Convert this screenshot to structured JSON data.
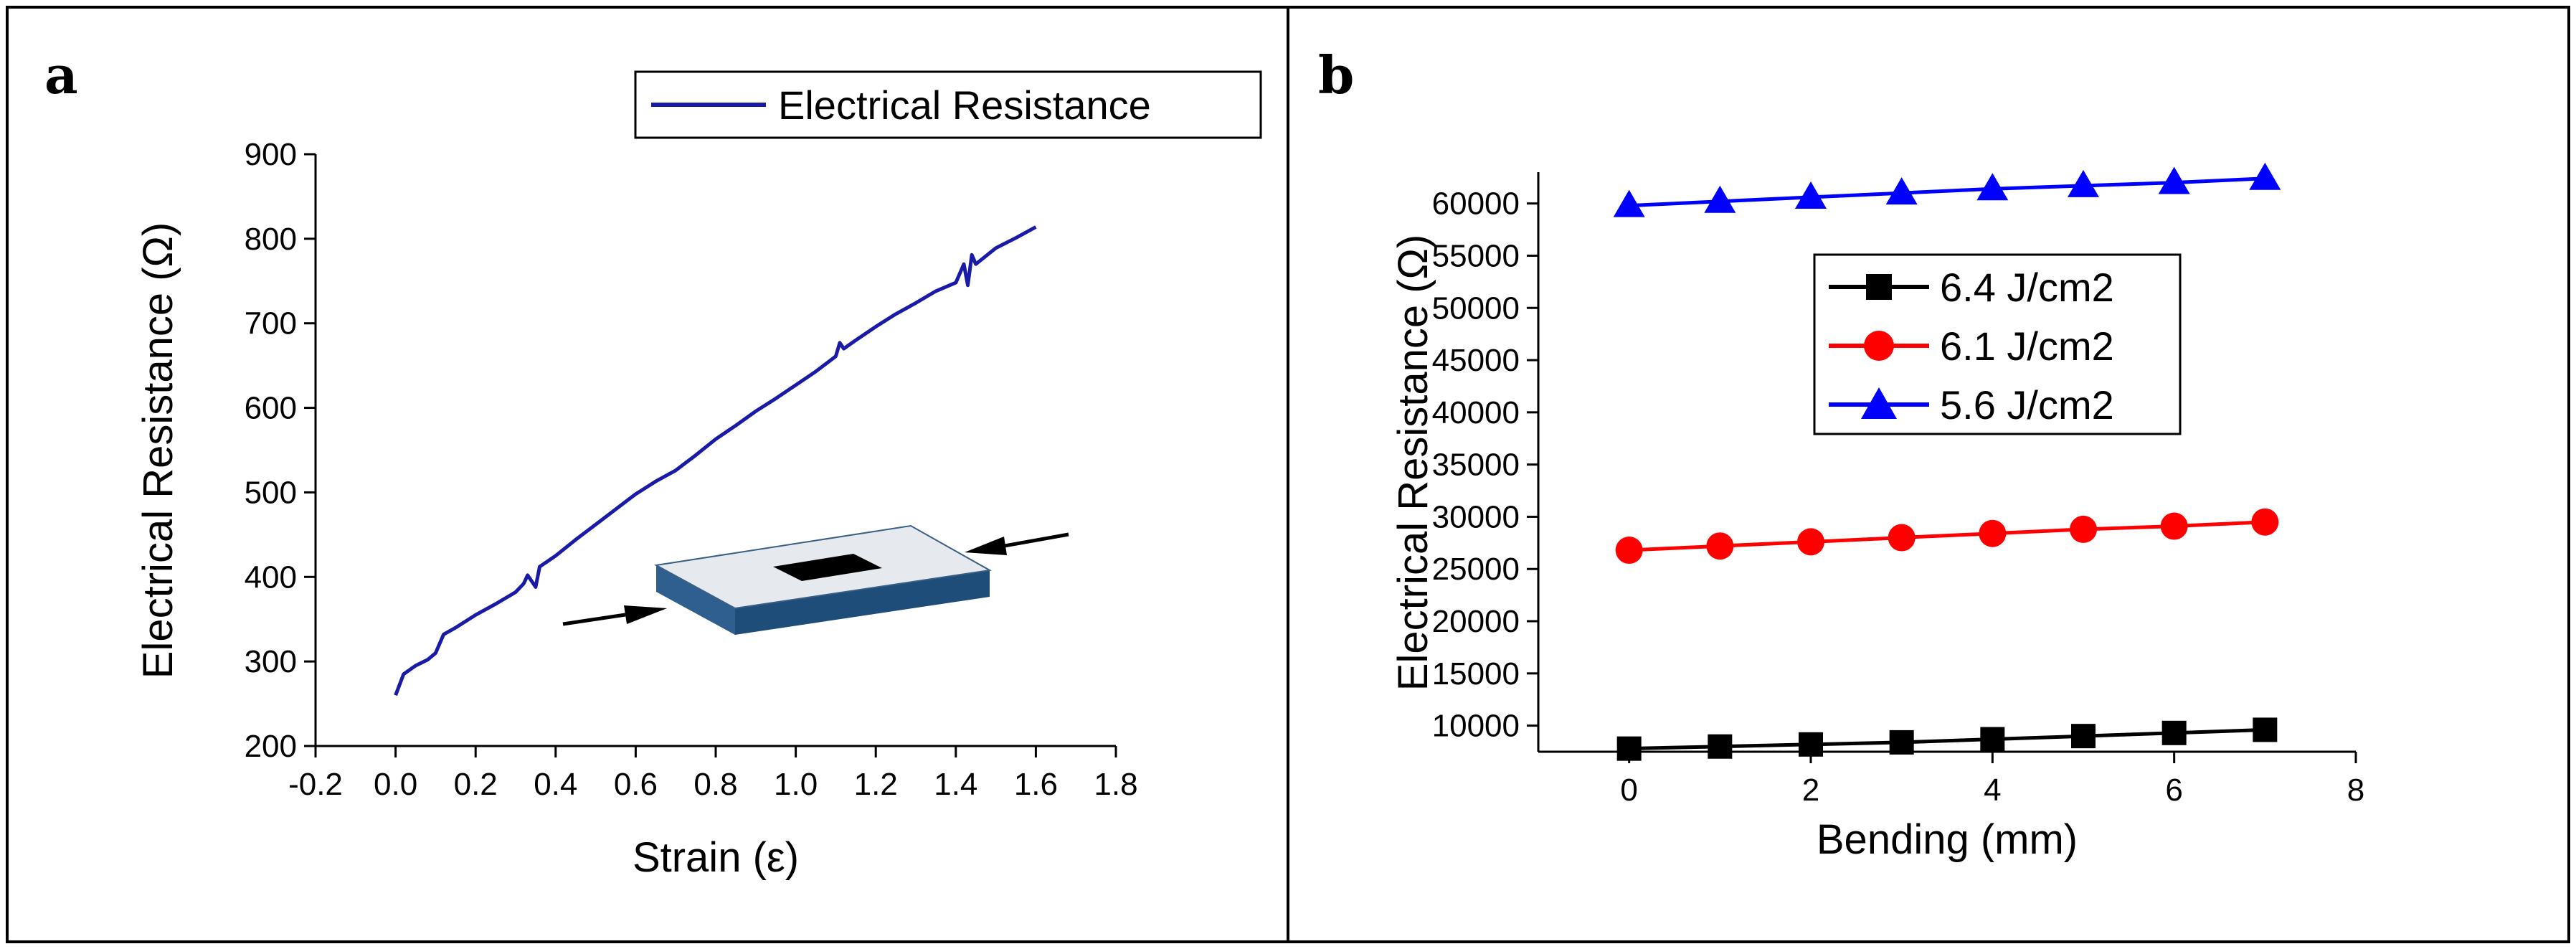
{
  "panels": {
    "a": {
      "letter": "a"
    },
    "b": {
      "letter": "b"
    }
  },
  "colors": {
    "black": "#000000",
    "red": "#ff0000",
    "blue": "#1a1aa8",
    "blue_bright": "#0000ff",
    "inset_top": "#e6e9ee",
    "inset_side": "#2e5f8f"
  },
  "chart_data": [
    {
      "type": "line",
      "title": "",
      "xlabel": "Strain (ε)",
      "ylabel": "Electrical Resistance (Ω)",
      "xlim": [
        -0.2,
        1.8
      ],
      "ylim": [
        200,
        900
      ],
      "xticks": [
        -0.2,
        0.0,
        0.2,
        0.4,
        0.6,
        0.8,
        1.0,
        1.2,
        1.4,
        1.6,
        1.8
      ],
      "xtick_labels": [
        "-0.2",
        "0.0",
        "0.2",
        "0.4",
        "0.6",
        "0.8",
        "1.0",
        "1.2",
        "1.4",
        "1.6",
        "1.8"
      ],
      "yticks": [
        200,
        300,
        400,
        500,
        600,
        700,
        800,
        900
      ],
      "ytick_labels": [
        "200",
        "300",
        "400",
        "500",
        "600",
        "700",
        "800",
        "900"
      ],
      "legend_position": "top-right",
      "inset_icon": "compressed-substrate-with-arrows",
      "series": [
        {
          "name": "Electrical Resistance",
          "x": [
            0.0,
            0.02,
            0.05,
            0.08,
            0.1,
            0.12,
            0.15,
            0.2,
            0.25,
            0.3,
            0.32,
            0.33,
            0.35,
            0.36,
            0.4,
            0.45,
            0.5,
            0.55,
            0.6,
            0.65,
            0.7,
            0.75,
            0.8,
            0.85,
            0.9,
            0.95,
            1.0,
            1.05,
            1.1,
            1.11,
            1.12,
            1.15,
            1.2,
            1.25,
            1.3,
            1.35,
            1.4,
            1.42,
            1.43,
            1.44,
            1.45,
            1.5,
            1.55,
            1.6
          ],
          "y": [
            260,
            285,
            295,
            302,
            310,
            332,
            340,
            355,
            368,
            382,
            392,
            402,
            388,
            412,
            425,
            444,
            462,
            480,
            498,
            513,
            526,
            544,
            563,
            579,
            596,
            611,
            627,
            643,
            661,
            677,
            670,
            680,
            696,
            711,
            724,
            738,
            748,
            770,
            745,
            781,
            770,
            789,
            801,
            814
          ]
        }
      ]
    },
    {
      "type": "line",
      "title": "",
      "xlabel": "Bending (mm)",
      "ylabel": "Electrical Resistance (Ω)",
      "xlim": [
        -1,
        8
      ],
      "ylim": [
        7500,
        63000
      ],
      "xticks": [
        0,
        2,
        4,
        6,
        8
      ],
      "xtick_labels": [
        "0",
        "2",
        "4",
        "6",
        "8"
      ],
      "yticks": [
        10000,
        15000,
        20000,
        25000,
        30000,
        35000,
        40000,
        45000,
        50000,
        55000,
        60000
      ],
      "ytick_labels": [
        "10000",
        "15000",
        "20000",
        "25000",
        "30000",
        "35000",
        "40000",
        "45000",
        "50000",
        "55000",
        "60000"
      ],
      "legend_position": "upper-center",
      "x": [
        0,
        1,
        2,
        3,
        4,
        5,
        6,
        7
      ],
      "series": [
        {
          "name": "6.4 J/cm2",
          "marker": "square",
          "values": [
            7800,
            8000,
            8200,
            8400,
            8700,
            9000,
            9300,
            9600
          ]
        },
        {
          "name": "6.1 J/cm2",
          "marker": "circle",
          "values": [
            26800,
            27200,
            27600,
            28000,
            28400,
            28800,
            29100,
            29500
          ]
        },
        {
          "name": "5.6 J/cm2",
          "marker": "triangle",
          "values": [
            59800,
            60200,
            60600,
            61000,
            61400,
            61700,
            62000,
            62400
          ]
        }
      ]
    }
  ]
}
